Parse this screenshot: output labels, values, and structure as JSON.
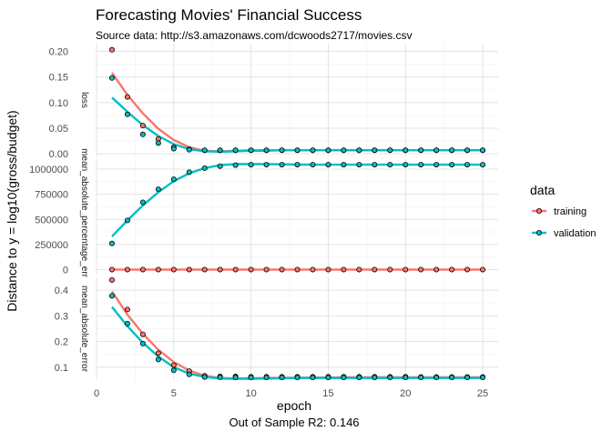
{
  "title": "Forecasting Movies' Financial Success",
  "subtitle": "Source data: http://s3.amazonaws.com/dcwoods2717/movies.csv",
  "xlabel": "epoch",
  "ylabel": "Distance to y = log10(gross/budget)",
  "caption": "Out of Sample R2: 0.146",
  "legend": {
    "title": "data",
    "placement": "right",
    "items": [
      {
        "label": "training",
        "color": "#F8766D"
      },
      {
        "label": "validation",
        "color": "#00BFC4"
      }
    ]
  },
  "chart_data": {
    "type": "scatter",
    "x": [
      1,
      2,
      3,
      4,
      5,
      6,
      7,
      8,
      9,
      10,
      11,
      12,
      13,
      14,
      15,
      16,
      17,
      18,
      19,
      20,
      21,
      22,
      23,
      24,
      25
    ],
    "xlim": [
      0,
      26
    ],
    "xticks": [
      0,
      5,
      10,
      15,
      20,
      25
    ],
    "x_tick_labels": [
      "0",
      "5",
      "10",
      "15",
      "20",
      "25"
    ],
    "grid": true,
    "smooth_lines": true,
    "facets": [
      {
        "strip_label": "loss",
        "ylim": [
          -0.005,
          0.215
        ],
        "yticks": [
          0,
          0.05,
          0.1,
          0.15,
          0.2
        ],
        "y_tick_labels": [
          "0.00",
          "0.05",
          "0.10",
          "0.15",
          "0.20"
        ],
        "series": [
          {
            "name": "training",
            "color": "#F8766D",
            "values": [
              0.203,
              0.111,
              0.055,
              0.029,
              0.013,
              0.009,
              0.007,
              0.007,
              0.007,
              0.007,
              0.007,
              0.007,
              0.007,
              0.007,
              0.007,
              0.007,
              0.007,
              0.007,
              0.007,
              0.007,
              0.007,
              0.007,
              0.007,
              0.007,
              0.007
            ],
            "smooth": [
              0.158,
              0.115,
              0.079,
              0.049,
              0.027,
              0.013,
              0.006,
              0.005,
              0.006,
              0.007,
              0.007,
              0.007,
              0.007,
              0.007,
              0.007,
              0.007,
              0.007,
              0.007,
              0.007,
              0.007,
              0.007,
              0.007,
              0.007,
              0.007,
              0.007
            ]
          },
          {
            "name": "validation",
            "color": "#00BFC4",
            "values": [
              0.148,
              0.077,
              0.038,
              0.021,
              0.01,
              0.008,
              0.007,
              0.007,
              0.007,
              0.007,
              0.007,
              0.007,
              0.007,
              0.007,
              0.007,
              0.007,
              0.007,
              0.007,
              0.007,
              0.007,
              0.007,
              0.007,
              0.007,
              0.007,
              0.007
            ],
            "smooth": [
              0.11,
              0.082,
              0.056,
              0.035,
              0.019,
              0.009,
              0.005,
              0.004,
              0.005,
              0.006,
              0.006,
              0.007,
              0.007,
              0.007,
              0.007,
              0.007,
              0.007,
              0.007,
              0.007,
              0.007,
              0.007,
              0.007,
              0.007,
              0.007,
              0.007
            ]
          }
        ]
      },
      {
        "strip_label": "mean_absolute_percentage_error",
        "ylim": [
          -50000,
          1100000
        ],
        "yticks": [
          0,
          250000,
          500000,
          750000,
          1000000
        ],
        "y_tick_labels": [
          "0",
          "250000",
          "500000",
          "750000",
          "1000000"
        ],
        "series": [
          {
            "name": "training",
            "color": "#F8766D",
            "values": [
              0,
              0,
              0,
              0,
              0,
              0,
              0,
              0,
              0,
              0,
              0,
              0,
              0,
              0,
              0,
              0,
              0,
              0,
              0,
              0,
              0,
              0,
              0,
              0,
              0
            ],
            "smooth": [
              0,
              0,
              0,
              0,
              0,
              0,
              0,
              0,
              0,
              0,
              0,
              0,
              0,
              0,
              0,
              0,
              0,
              0,
              0,
              0,
              0,
              0,
              0,
              0,
              0
            ]
          },
          {
            "name": "validation",
            "color": "#00BFC4",
            "values": [
              260000,
              490000,
              670000,
              800000,
              900000,
              970000,
              1010000,
              1030000,
              1040000,
              1045000,
              1045000,
              1045000,
              1045000,
              1045000,
              1045000,
              1045000,
              1045000,
              1045000,
              1045000,
              1045000,
              1045000,
              1045000,
              1045000,
              1045000,
              1045000
            ],
            "smooth": [
              330000,
              490000,
              640000,
              770000,
              880000,
              960000,
              1010000,
              1040000,
              1050000,
              1050000,
              1050000,
              1048000,
              1046000,
              1045000,
              1045000,
              1045000,
              1045000,
              1045000,
              1045000,
              1045000,
              1045000,
              1045000,
              1045000,
              1045000,
              1045000
            ]
          }
        ]
      },
      {
        "strip_label": "mean_absolute_error",
        "ylim": [
          0.05,
          0.45
        ],
        "yticks": [
          0.1,
          0.2,
          0.3,
          0.4
        ],
        "y_tick_labels": [
          "0.1",
          "0.2",
          "0.3",
          "0.4"
        ],
        "series": [
          {
            "name": "training",
            "color": "#F8766D",
            "values": [
              0.44,
              0.325,
              0.228,
              0.155,
              0.108,
              0.085,
              0.067,
              0.064,
              0.064,
              0.063,
              0.063,
              0.063,
              0.063,
              0.063,
              0.063,
              0.063,
              0.063,
              0.063,
              0.063,
              0.063,
              0.062,
              0.062,
              0.062,
              0.062,
              0.062
            ],
            "smooth": [
              0.395,
              0.305,
              0.23,
              0.168,
              0.12,
              0.087,
              0.067,
              0.058,
              0.056,
              0.057,
              0.058,
              0.059,
              0.059,
              0.06,
              0.06,
              0.061,
              0.061,
              0.061,
              0.061,
              0.061,
              0.061,
              0.061,
              0.061,
              0.061,
              0.061
            ]
          },
          {
            "name": "validation",
            "color": "#00BFC4",
            "values": [
              0.378,
              0.27,
              0.192,
              0.13,
              0.088,
              0.072,
              0.062,
              0.061,
              0.06,
              0.06,
              0.06,
              0.06,
              0.06,
              0.06,
              0.06,
              0.06,
              0.06,
              0.06,
              0.06,
              0.06,
              0.06,
              0.06,
              0.06,
              0.06,
              0.06
            ],
            "smooth": [
              0.335,
              0.26,
              0.195,
              0.142,
              0.1,
              0.075,
              0.062,
              0.056,
              0.055,
              0.055,
              0.056,
              0.057,
              0.058,
              0.058,
              0.058,
              0.058,
              0.058,
              0.058,
              0.058,
              0.058,
              0.058,
              0.058,
              0.058,
              0.058,
              0.058
            ]
          }
        ]
      }
    ]
  }
}
